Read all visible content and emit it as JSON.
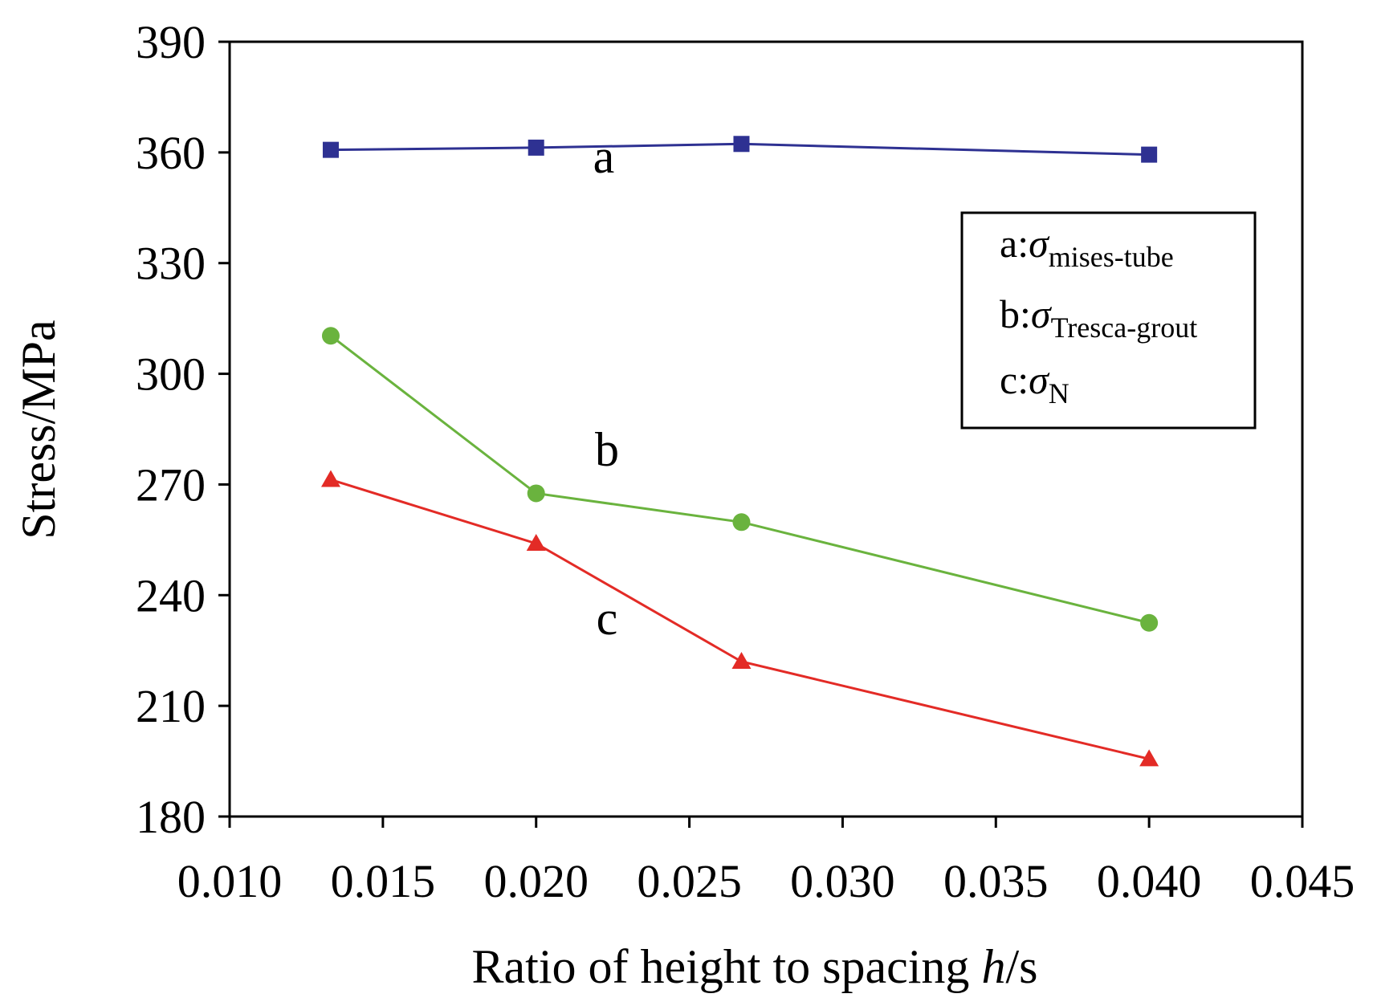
{
  "chart_data": {
    "type": "line",
    "title": "",
    "xlabel_main": "Ratio of height to spacing ",
    "xlabel_italic": "h",
    "xlabel_tail": "/s",
    "ylabel": "Stress/MPa",
    "xlim": [
      0.01,
      0.045
    ],
    "ylim": [
      180,
      390
    ],
    "xticks": [
      "0.010",
      "0.015",
      "0.020",
      "0.025",
      "0.030",
      "0.035",
      "0.040",
      "0.045"
    ],
    "yticks": [
      "180",
      "210",
      "240",
      "270",
      "300",
      "330",
      "360",
      "390"
    ],
    "x": [
      0.0133,
      0.02,
      0.0267,
      0.04
    ],
    "series": [
      {
        "id": "a",
        "label": "a",
        "legend_prefix": "a:",
        "legend_symbol": "σ",
        "legend_sub": "mises-tube",
        "color": "#2e3192",
        "marker": "square",
        "values": [
          360.7,
          361.3,
          362.3,
          359.4
        ]
      },
      {
        "id": "b",
        "label": "b",
        "legend_prefix": "b:",
        "legend_symbol": "σ",
        "legend_sub": "Tresca-grout",
        "color": "#6ab33e",
        "marker": "circle",
        "values": [
          310.3,
          267.6,
          259.8,
          232.5
        ]
      },
      {
        "id": "c",
        "label": "c",
        "legend_prefix": "c:",
        "legend_symbol": "σ",
        "legend_sub": "N",
        "color": "#e32b26",
        "marker": "triangle",
        "values": [
          271.3,
          254.0,
          222.0,
          195.6
        ]
      }
    ],
    "grid": false,
    "legend_position": "top-right"
  }
}
